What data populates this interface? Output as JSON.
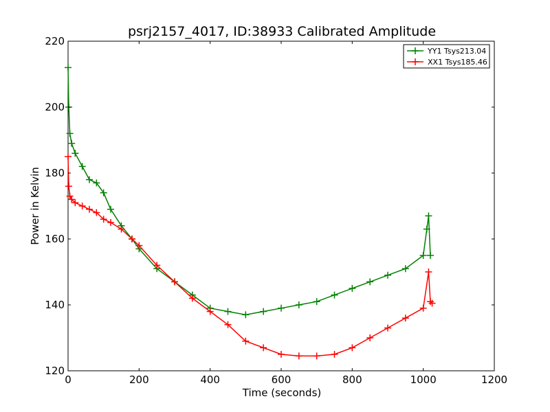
{
  "chart_data": {
    "type": "line",
    "title": "psrj2157_4017, ID:38933 Calibrated Amplitude",
    "xlabel": "Time (seconds)",
    "ylabel": "Power in Kelvin",
    "xlim": [
      0,
      1200
    ],
    "ylim": [
      120,
      220
    ],
    "x_ticks": [
      "0",
      "200",
      "400",
      "600",
      "800",
      "1000",
      "1200"
    ],
    "y_ticks": [
      "120",
      "140",
      "160",
      "180",
      "200",
      "220"
    ],
    "grid": false,
    "legend_position": "top-right",
    "marker": "+",
    "series": [
      {
        "name": "YY1 Tsys213.04",
        "color": "#008000",
        "x": [
          0,
          2,
          5,
          10,
          20,
          40,
          60,
          80,
          100,
          120,
          150,
          180,
          200,
          250,
          300,
          350,
          400,
          450,
          500,
          550,
          600,
          650,
          700,
          750,
          800,
          850,
          900,
          950,
          1000,
          1010,
          1015,
          1020
        ],
        "y": [
          212,
          200,
          192,
          189,
          186,
          182,
          178,
          177,
          174,
          169,
          164,
          160,
          157,
          151,
          147,
          143,
          139,
          138,
          137,
          138,
          139,
          140,
          141,
          143,
          145,
          147,
          149,
          151,
          155,
          163,
          167,
          155
        ]
      },
      {
        "name": "XX1 Tsys185.46",
        "color": "#ff0000",
        "x": [
          0,
          2,
          5,
          10,
          20,
          40,
          60,
          80,
          100,
          120,
          150,
          180,
          200,
          250,
          300,
          350,
          400,
          450,
          500,
          550,
          600,
          650,
          700,
          750,
          800,
          850,
          900,
          950,
          1000,
          1015,
          1020,
          1025
        ],
        "y": [
          185,
          176,
          173,
          172,
          171,
          170,
          169,
          168,
          166,
          165,
          163,
          160,
          158,
          152,
          147,
          142,
          138,
          134,
          129,
          127,
          125,
          124.5,
          124.5,
          125,
          127,
          130,
          133,
          136,
          139,
          150,
          141,
          140.5
        ]
      }
    ]
  }
}
